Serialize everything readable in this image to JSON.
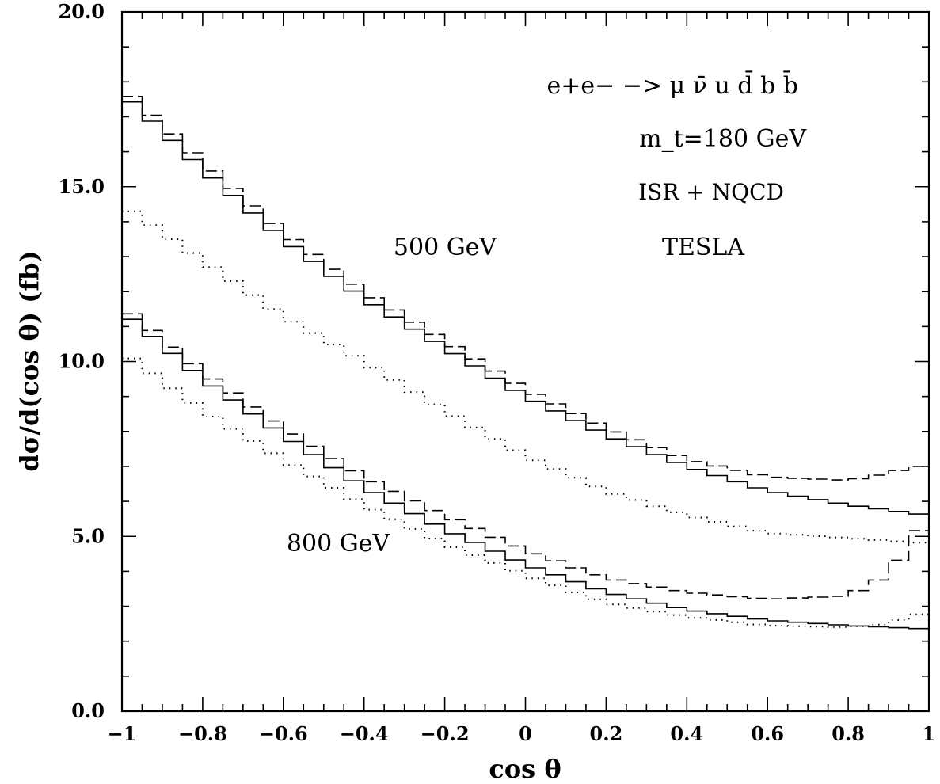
{
  "chart_data": {
    "type": "line",
    "title": "",
    "xlabel": "cos θ",
    "ylabel": "dσ/d(cos θ) (fb)",
    "xlim": [
      -1,
      1
    ],
    "ylim": [
      0,
      20
    ],
    "x_tick_labels": [
      {
        "value": -1,
        "label": "−1"
      },
      {
        "value": -0.8,
        "label": "−0.8"
      },
      {
        "value": -0.6,
        "label": "−0.6"
      },
      {
        "value": -0.4,
        "label": "−0.4"
      },
      {
        "value": -0.2,
        "label": "−0.2"
      },
      {
        "value": 0,
        "label": "0"
      },
      {
        "value": 0.2,
        "label": "0.2"
      },
      {
        "value": 0.4,
        "label": "0.4"
      },
      {
        "value": 0.6,
        "label": "0.6"
      },
      {
        "value": 0.8,
        "label": "0.8"
      },
      {
        "value": 1,
        "label": "1"
      }
    ],
    "y_tick_labels": [
      {
        "value": 0,
        "label": "0.0"
      },
      {
        "value": 5,
        "label": "5.0"
      },
      {
        "value": 10,
        "label": "10.0"
      },
      {
        "value": 15,
        "label": "15.0"
      },
      {
        "value": 20,
        "label": "20.0"
      }
    ],
    "annotations": {
      "process": "e+e− −> μ ν̄ u d̄ b b̄",
      "mass": "m_t=180 GeV",
      "corrections": "ISR + NQCD",
      "collider": "TESLA",
      "energy_500": "500 GeV",
      "energy_800": "800 GeV"
    },
    "curve_style": "histogram",
    "bins": 40,
    "series": [
      {
        "style": "solid",
        "knots_x": [
          -1,
          -0.8,
          -0.6,
          -0.4,
          -0.2,
          0,
          0.2,
          0.4,
          0.6,
          0.8,
          1
        ],
        "knots_y": [
          17.7,
          15.5,
          13.5,
          11.8,
          10.4,
          9.0,
          7.9,
          7.0,
          6.3,
          5.9,
          5.6
        ]
      },
      {
        "style": "dashed",
        "knots_x": [
          -1,
          -0.8,
          -0.6,
          -0.4,
          -0.2,
          0,
          0.2,
          0.4,
          0.6,
          0.8,
          0.9,
          0.96,
          1
        ],
        "knots_y": [
          17.85,
          15.7,
          13.7,
          12.0,
          10.6,
          9.2,
          8.1,
          7.2,
          6.7,
          6.6,
          6.8,
          7.0,
          7.0
        ]
      },
      {
        "style": "dotted",
        "knots_x": [
          -1,
          -0.8,
          -0.6,
          -0.4,
          -0.2,
          0,
          0.2,
          0.4,
          0.6,
          0.8,
          1
        ],
        "knots_y": [
          14.5,
          12.9,
          11.3,
          10.0,
          8.6,
          7.3,
          6.3,
          5.6,
          5.1,
          4.95,
          4.8
        ]
      },
      {
        "style": "solid",
        "knots_x": [
          -1,
          -0.8,
          -0.6,
          -0.4,
          -0.2,
          0,
          0.2,
          0.4,
          0.6,
          0.8,
          1
        ],
        "knots_y": [
          11.45,
          9.5,
          7.9,
          6.4,
          5.2,
          4.2,
          3.4,
          2.9,
          2.6,
          2.45,
          2.35
        ]
      },
      {
        "style": "dashed",
        "knots_x": [
          -1,
          -0.8,
          -0.6,
          -0.4,
          -0.2,
          0,
          0.2,
          0.4,
          0.6,
          0.8,
          0.9,
          0.96,
          1
        ],
        "knots_y": [
          11.6,
          9.7,
          8.1,
          6.7,
          5.6,
          4.6,
          3.8,
          3.4,
          3.2,
          3.3,
          3.9,
          4.9,
          5.6
        ]
      },
      {
        "style": "dotted",
        "knots_x": [
          -1,
          -0.8,
          -0.6,
          -0.4,
          -0.2,
          0,
          0.2,
          0.4,
          0.6,
          0.8,
          0.9,
          0.96,
          1
        ],
        "knots_y": [
          10.3,
          8.6,
          7.2,
          5.9,
          4.8,
          3.9,
          3.1,
          2.7,
          2.45,
          2.4,
          2.5,
          2.75,
          2.8
        ]
      }
    ]
  }
}
